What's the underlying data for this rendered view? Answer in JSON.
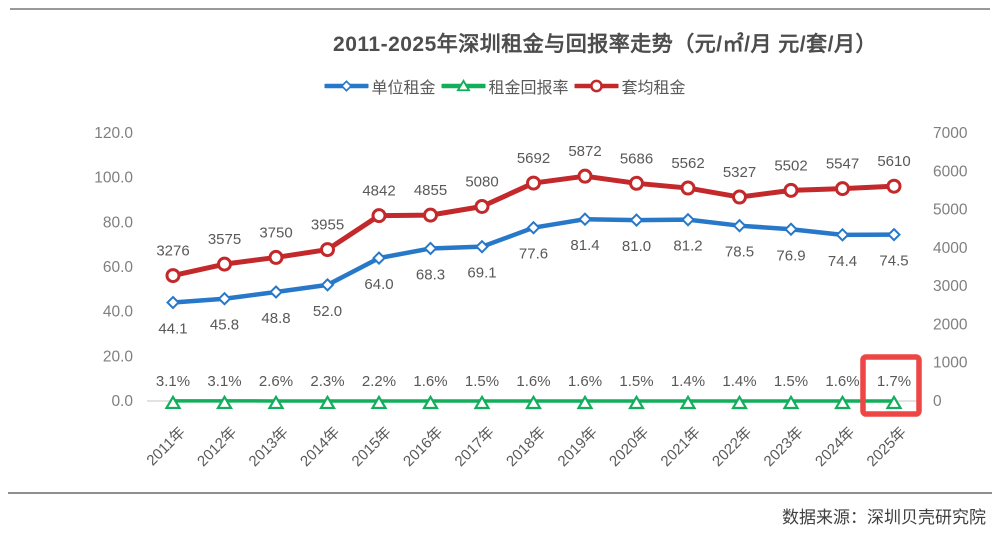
{
  "title": "2011-2025年深圳租金与回报率走势（元/㎡/月 元/套/月）",
  "source": "数据来源：深圳贝壳研究院",
  "colors": {
    "unit_rent_blue": "#2878C9",
    "return_rate_green": "#12AE5B",
    "avg_rent_red": "#C3292B",
    "highlight_box_red": "#EE4545",
    "axis_text_gray": "#7F7F7F",
    "label_text_gray": "#595959",
    "zero_gridline": "#D9D9D9"
  },
  "chart_data": {
    "type": "line",
    "title": "2011-2025年深圳租金与回报率走势（元/㎡/月 元/套/月）",
    "legend_position": "top",
    "grid": "zero-line-only",
    "categories": [
      "2011年",
      "2012年",
      "2013年",
      "2014年",
      "2015年",
      "2016年",
      "2017年",
      "2018年",
      "2019年",
      "2020年",
      "2021年",
      "2022年",
      "2023年",
      "2024年",
      "2025年"
    ],
    "series": [
      {
        "name": "单位租金",
        "color": "#2878C9",
        "marker": "diamond",
        "axis": "left",
        "unit": "",
        "label_side": "below",
        "values": [
          44.1,
          45.8,
          48.8,
          52.0,
          64.0,
          68.3,
          69.1,
          77.6,
          81.4,
          81.0,
          81.2,
          78.5,
          76.9,
          74.4,
          74.5
        ],
        "labels": [
          "44.1",
          "45.8",
          "48.8",
          "52.0",
          "64.0",
          "68.3",
          "69.1",
          "77.6",
          "81.4",
          "81.0",
          "81.2",
          "78.5",
          "76.9",
          "74.4",
          "74.5"
        ]
      },
      {
        "name": "租金回报率",
        "color": "#12AE5B",
        "marker": "triangle",
        "axis": "left",
        "unit": "percent",
        "label_side": "above",
        "values": [
          3.1,
          3.1,
          2.6,
          2.3,
          2.2,
          1.6,
          1.5,
          1.6,
          1.6,
          1.5,
          1.4,
          1.4,
          1.5,
          1.6,
          1.7
        ],
        "labels": [
          "3.1%",
          "3.1%",
          "2.6%",
          "2.3%",
          "2.2%",
          "1.6%",
          "1.5%",
          "1.6%",
          "1.6%",
          "1.5%",
          "1.4%",
          "1.4%",
          "1.5%",
          "1.6%",
          "1.7%"
        ]
      },
      {
        "name": "套均租金",
        "color": "#C3292B",
        "marker": "circle",
        "axis": "right",
        "unit": "",
        "label_side": "above",
        "values": [
          3276,
          3575,
          3750,
          3955,
          4842,
          4855,
          5080,
          5692,
          5872,
          5686,
          5562,
          5327,
          5502,
          5547,
          5610
        ],
        "labels": [
          "3276",
          "3575",
          "3750",
          "3955",
          "4842",
          "4855",
          "5080",
          "5692",
          "5872",
          "5686",
          "5562",
          "5327",
          "5502",
          "5547",
          "5610"
        ]
      }
    ],
    "left_axis": {
      "ticks": [
        "0.0",
        "20.0",
        "40.0",
        "60.0",
        "80.0",
        "100.0",
        "120.0"
      ],
      "range": [
        0,
        120
      ]
    },
    "right_axis": {
      "ticks": [
        "0",
        "1000",
        "2000",
        "3000",
        "4000",
        "5000",
        "6000",
        "7000"
      ],
      "range": [
        0,
        7000
      ]
    },
    "highlight": {
      "series": "租金回报率",
      "category": "2025年",
      "label": "1.7%",
      "box_color": "#EE4545"
    }
  }
}
